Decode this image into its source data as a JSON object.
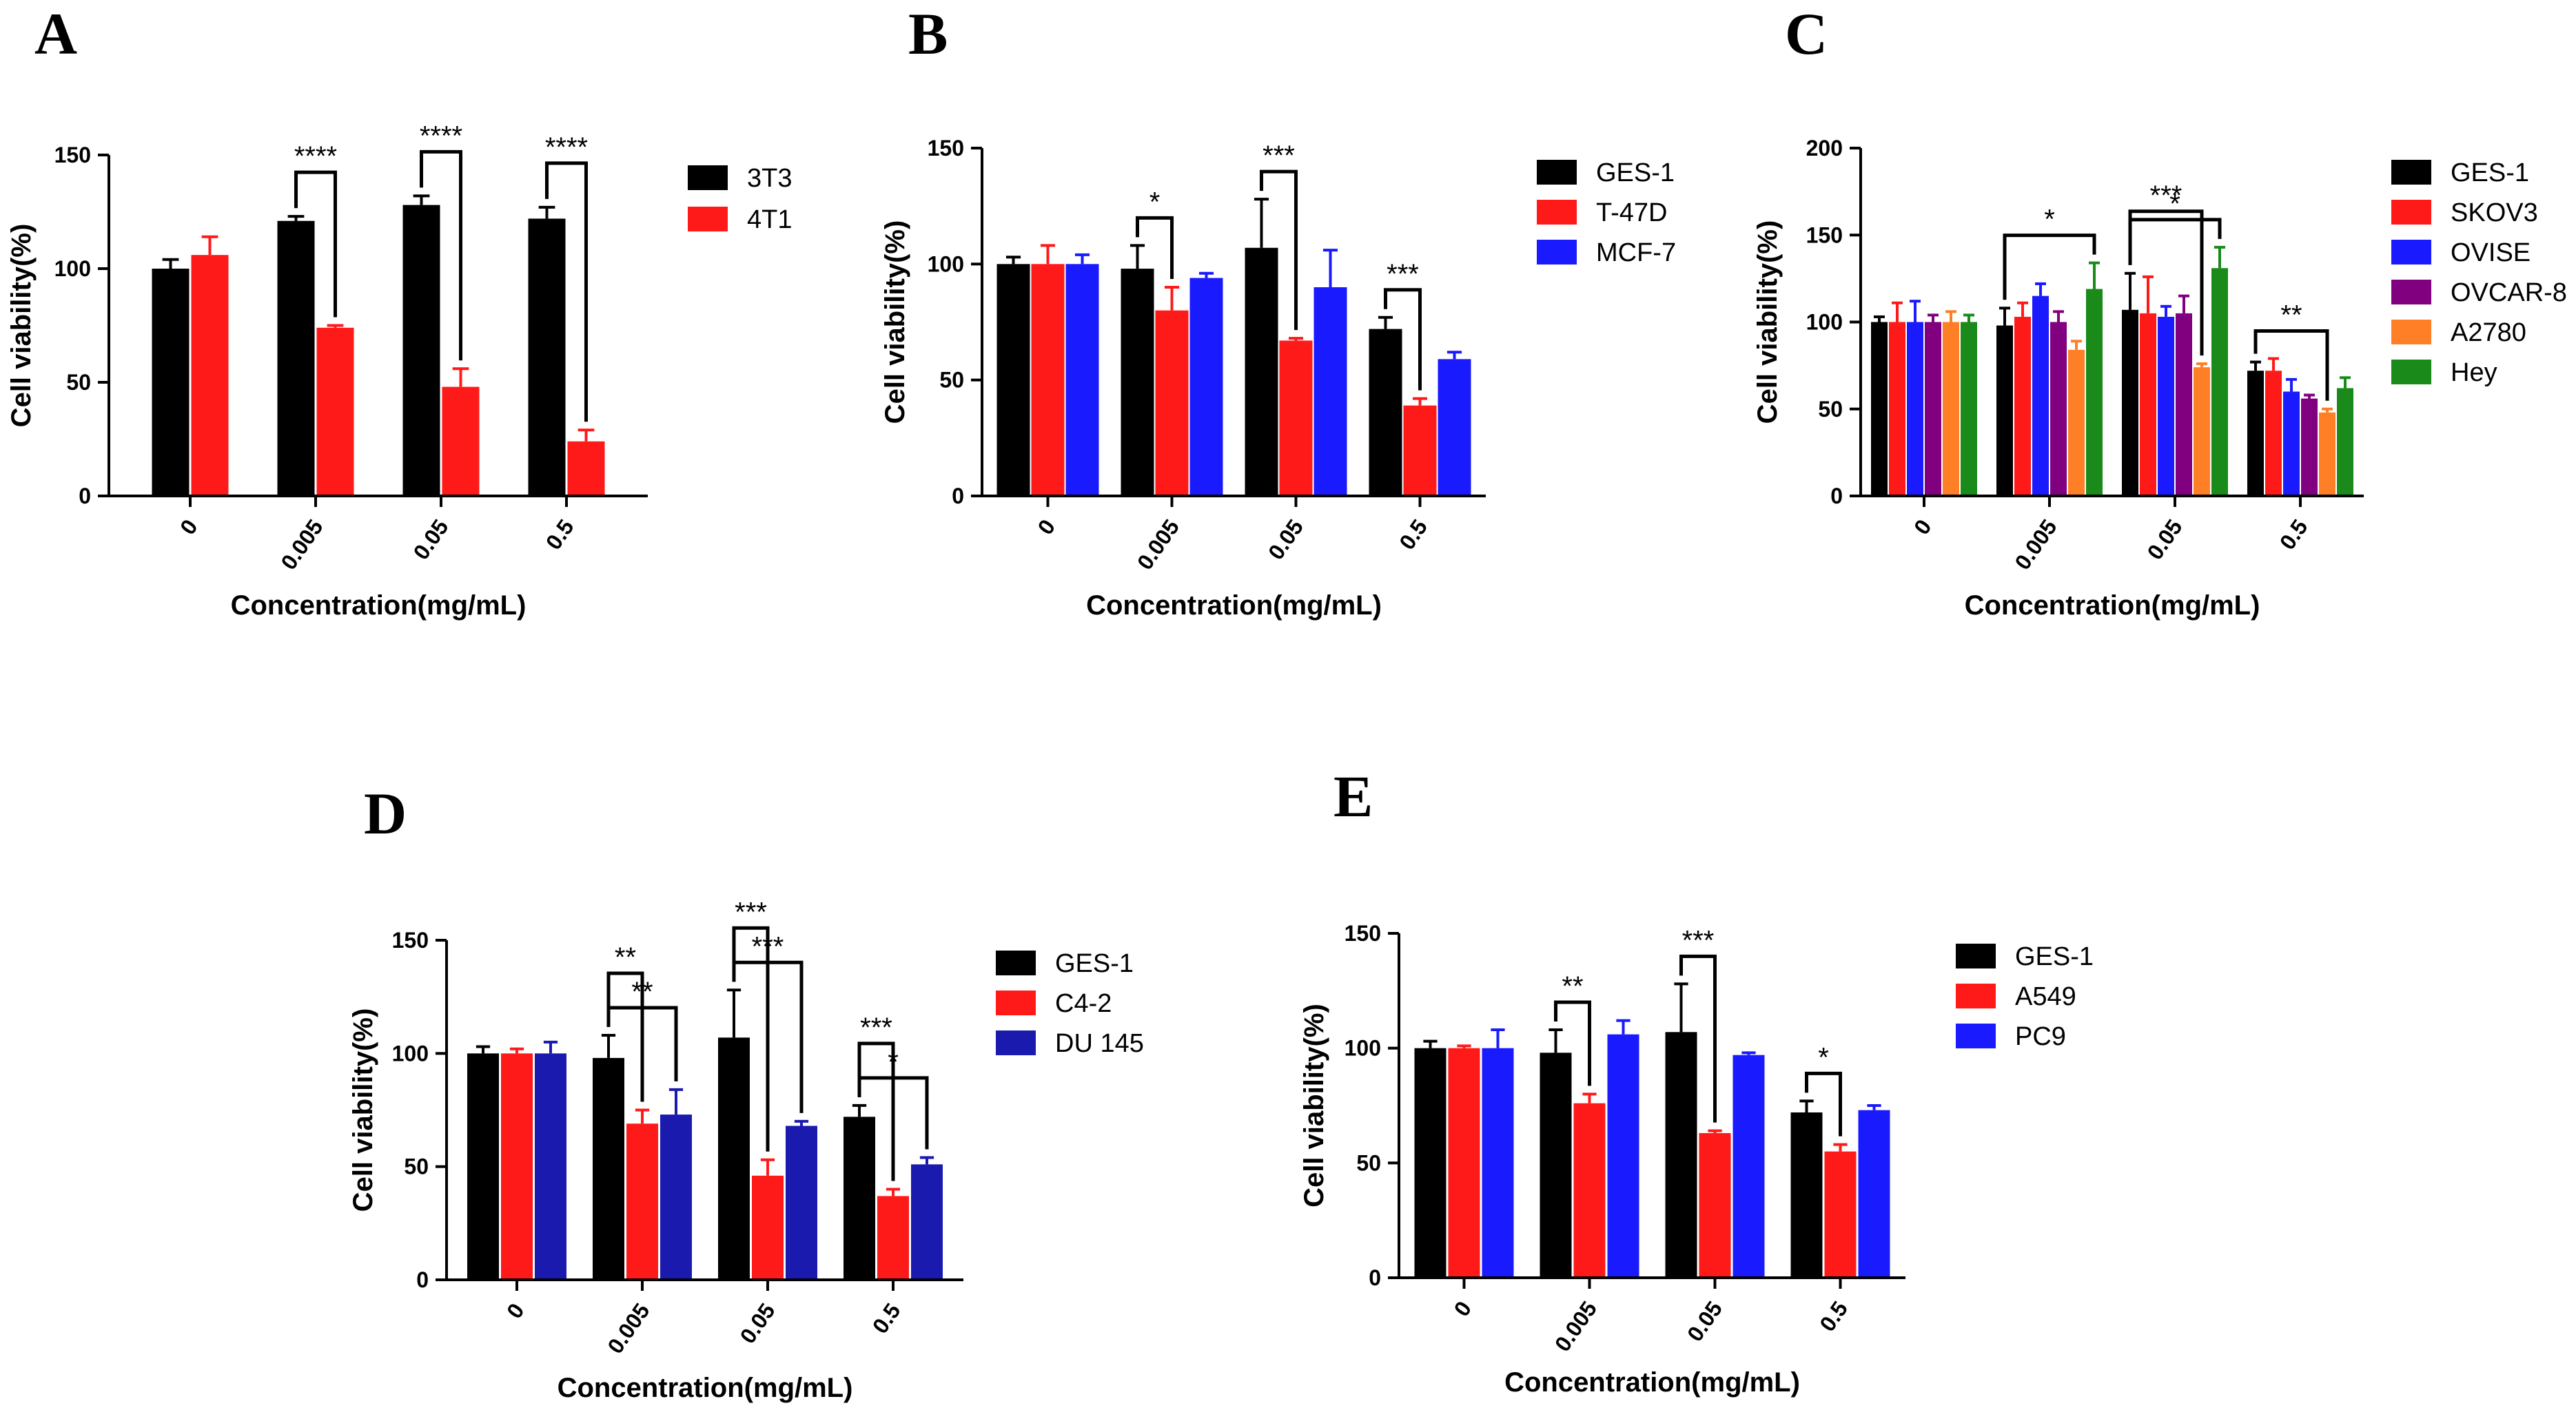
{
  "figure": {
    "description_free": true
  },
  "chart_data": [
    {
      "type": "bar",
      "panel": "A",
      "xlabel": "Concentration(mg/mL)",
      "ylabel": "Cell viability(%)",
      "categories": [
        "0",
        "0.005",
        "0.05",
        "0.5"
      ],
      "ylim": [
        0,
        150
      ],
      "yticks": [
        0,
        50,
        100,
        150
      ],
      "legend_position": "right",
      "series": [
        {
          "name": "3T3",
          "color": "#000000",
          "values": [
            100,
            121,
            128,
            122
          ],
          "errors": [
            4,
            2,
            4,
            5
          ]
        },
        {
          "name": "4T1",
          "color": "#ff1a1a",
          "values": [
            106,
            74,
            48,
            24
          ],
          "errors": [
            8,
            1,
            8,
            5
          ]
        }
      ],
      "significance": [
        {
          "group": 1,
          "from": 0,
          "to": 1,
          "label": "****"
        },
        {
          "group": 2,
          "from": 0,
          "to": 1,
          "label": "****"
        },
        {
          "group": 3,
          "from": 0,
          "to": 1,
          "label": "****"
        }
      ]
    },
    {
      "type": "bar",
      "panel": "B",
      "xlabel": "Concentration(mg/mL)",
      "ylabel": "Cell viability(%)",
      "categories": [
        "0",
        "0.005",
        "0.05",
        "0.5"
      ],
      "ylim": [
        0,
        150
      ],
      "yticks": [
        0,
        50,
        100,
        150
      ],
      "legend_position": "right",
      "series": [
        {
          "name": "GES-1",
          "color": "#000000",
          "values": [
            100,
            98,
            107,
            72
          ],
          "errors": [
            3,
            10,
            21,
            5
          ]
        },
        {
          "name": "T-47D",
          "color": "#ff1a1a",
          "values": [
            100,
            80,
            67,
            39
          ],
          "errors": [
            8,
            10,
            1,
            3
          ]
        },
        {
          "name": "MCF-7",
          "color": "#1a1aff",
          "values": [
            100,
            94,
            90,
            59
          ],
          "errors": [
            4,
            2,
            16,
            3
          ]
        }
      ],
      "significance": [
        {
          "group": 1,
          "from": 0,
          "to": 1,
          "label": "*"
        },
        {
          "group": 2,
          "from": 0,
          "to": 1,
          "label": "***"
        },
        {
          "group": 3,
          "from": 0,
          "to": 1,
          "label": "***"
        }
      ]
    },
    {
      "type": "bar",
      "panel": "C",
      "xlabel": "Concentration(mg/mL)",
      "ylabel": "Cell viability(%)",
      "categories": [
        "0",
        "0.005",
        "0.05",
        "0.5"
      ],
      "ylim": [
        0,
        200
      ],
      "yticks": [
        0,
        50,
        100,
        150,
        200
      ],
      "legend_position": "right",
      "series": [
        {
          "name": "GES-1",
          "color": "#000000",
          "values": [
            100,
            98,
            107,
            72
          ],
          "errors": [
            3,
            10,
            21,
            5
          ]
        },
        {
          "name": "SKOV3",
          "color": "#ff1a1a",
          "values": [
            100,
            103,
            105,
            72
          ],
          "errors": [
            11,
            8,
            21,
            7
          ]
        },
        {
          "name": "OVISE",
          "color": "#1a1aff",
          "values": [
            100,
            115,
            103,
            60
          ],
          "errors": [
            12,
            7,
            6,
            7
          ]
        },
        {
          "name": "OVCAR-8",
          "color": "#800080",
          "values": [
            100,
            100,
            105,
            56
          ],
          "errors": [
            4,
            6,
            10,
            2
          ]
        },
        {
          "name": "A2780",
          "color": "#ff7f27",
          "values": [
            100,
            84,
            74,
            48
          ],
          "errors": [
            6,
            5,
            2,
            2
          ]
        },
        {
          "name": "Hey",
          "color": "#1a8a1a",
          "values": [
            100,
            119,
            131,
            62
          ],
          "errors": [
            4,
            15,
            12,
            6
          ]
        }
      ],
      "significance": [
        {
          "group": 1,
          "from": 0,
          "to": 5,
          "label": "*"
        },
        {
          "group": 2,
          "from": 0,
          "to": 5,
          "label": "*"
        },
        {
          "group": 2,
          "from": 0,
          "to": 4,
          "label": "***"
        },
        {
          "group": 3,
          "from": 0,
          "to": 4,
          "label": "**"
        }
      ]
    },
    {
      "type": "bar",
      "panel": "D",
      "xlabel": "Concentration(mg/mL)",
      "ylabel": "Cell viability(%)",
      "categories": [
        "0",
        "0.005",
        "0.05",
        "0.5"
      ],
      "ylim": [
        0,
        150
      ],
      "yticks": [
        0,
        50,
        100,
        150
      ],
      "legend_position": "right",
      "series": [
        {
          "name": "GES-1",
          "color": "#000000",
          "values": [
            100,
            98,
            107,
            72
          ],
          "errors": [
            3,
            10,
            21,
            5
          ]
        },
        {
          "name": "C4-2",
          "color": "#ff1a1a",
          "values": [
            100,
            69,
            46,
            37
          ],
          "errors": [
            2,
            6,
            7,
            3
          ]
        },
        {
          "name": "DU 145",
          "color": "#1a1aaf",
          "values": [
            100,
            73,
            68,
            51
          ],
          "errors": [
            5,
            11,
            2,
            3
          ]
        }
      ],
      "significance": [
        {
          "group": 1,
          "from": 0,
          "to": 2,
          "label": "**"
        },
        {
          "group": 1,
          "from": 0,
          "to": 1,
          "label": "**"
        },
        {
          "group": 2,
          "from": 0,
          "to": 2,
          "label": "***"
        },
        {
          "group": 2,
          "from": 0,
          "to": 1,
          "label": "***"
        },
        {
          "group": 3,
          "from": 0,
          "to": 2,
          "label": "*"
        },
        {
          "group": 3,
          "from": 0,
          "to": 1,
          "label": "***"
        }
      ]
    },
    {
      "type": "bar",
      "panel": "E",
      "xlabel": "Concentration(mg/mL)",
      "ylabel": "Cell viability(%)",
      "categories": [
        "0",
        "0.005",
        "0.05",
        "0.5"
      ],
      "ylim": [
        0,
        150
      ],
      "yticks": [
        0,
        50,
        100,
        150
      ],
      "legend_position": "right",
      "series": [
        {
          "name": "GES-1",
          "color": "#000000",
          "values": [
            100,
            98,
            107,
            72
          ],
          "errors": [
            3,
            10,
            21,
            5
          ]
        },
        {
          "name": "A549",
          "color": "#ff1a1a",
          "values": [
            100,
            76,
            63,
            55
          ],
          "errors": [
            1,
            4,
            1,
            3
          ]
        },
        {
          "name": "PC9",
          "color": "#1a1aff",
          "values": [
            100,
            106,
            97,
            73
          ],
          "errors": [
            8,
            6,
            1,
            2
          ]
        }
      ],
      "significance": [
        {
          "group": 1,
          "from": 0,
          "to": 1,
          "label": "**"
        },
        {
          "group": 2,
          "from": 0,
          "to": 1,
          "label": "***"
        },
        {
          "group": 3,
          "from": 0,
          "to": 1,
          "label": "*"
        }
      ]
    }
  ]
}
